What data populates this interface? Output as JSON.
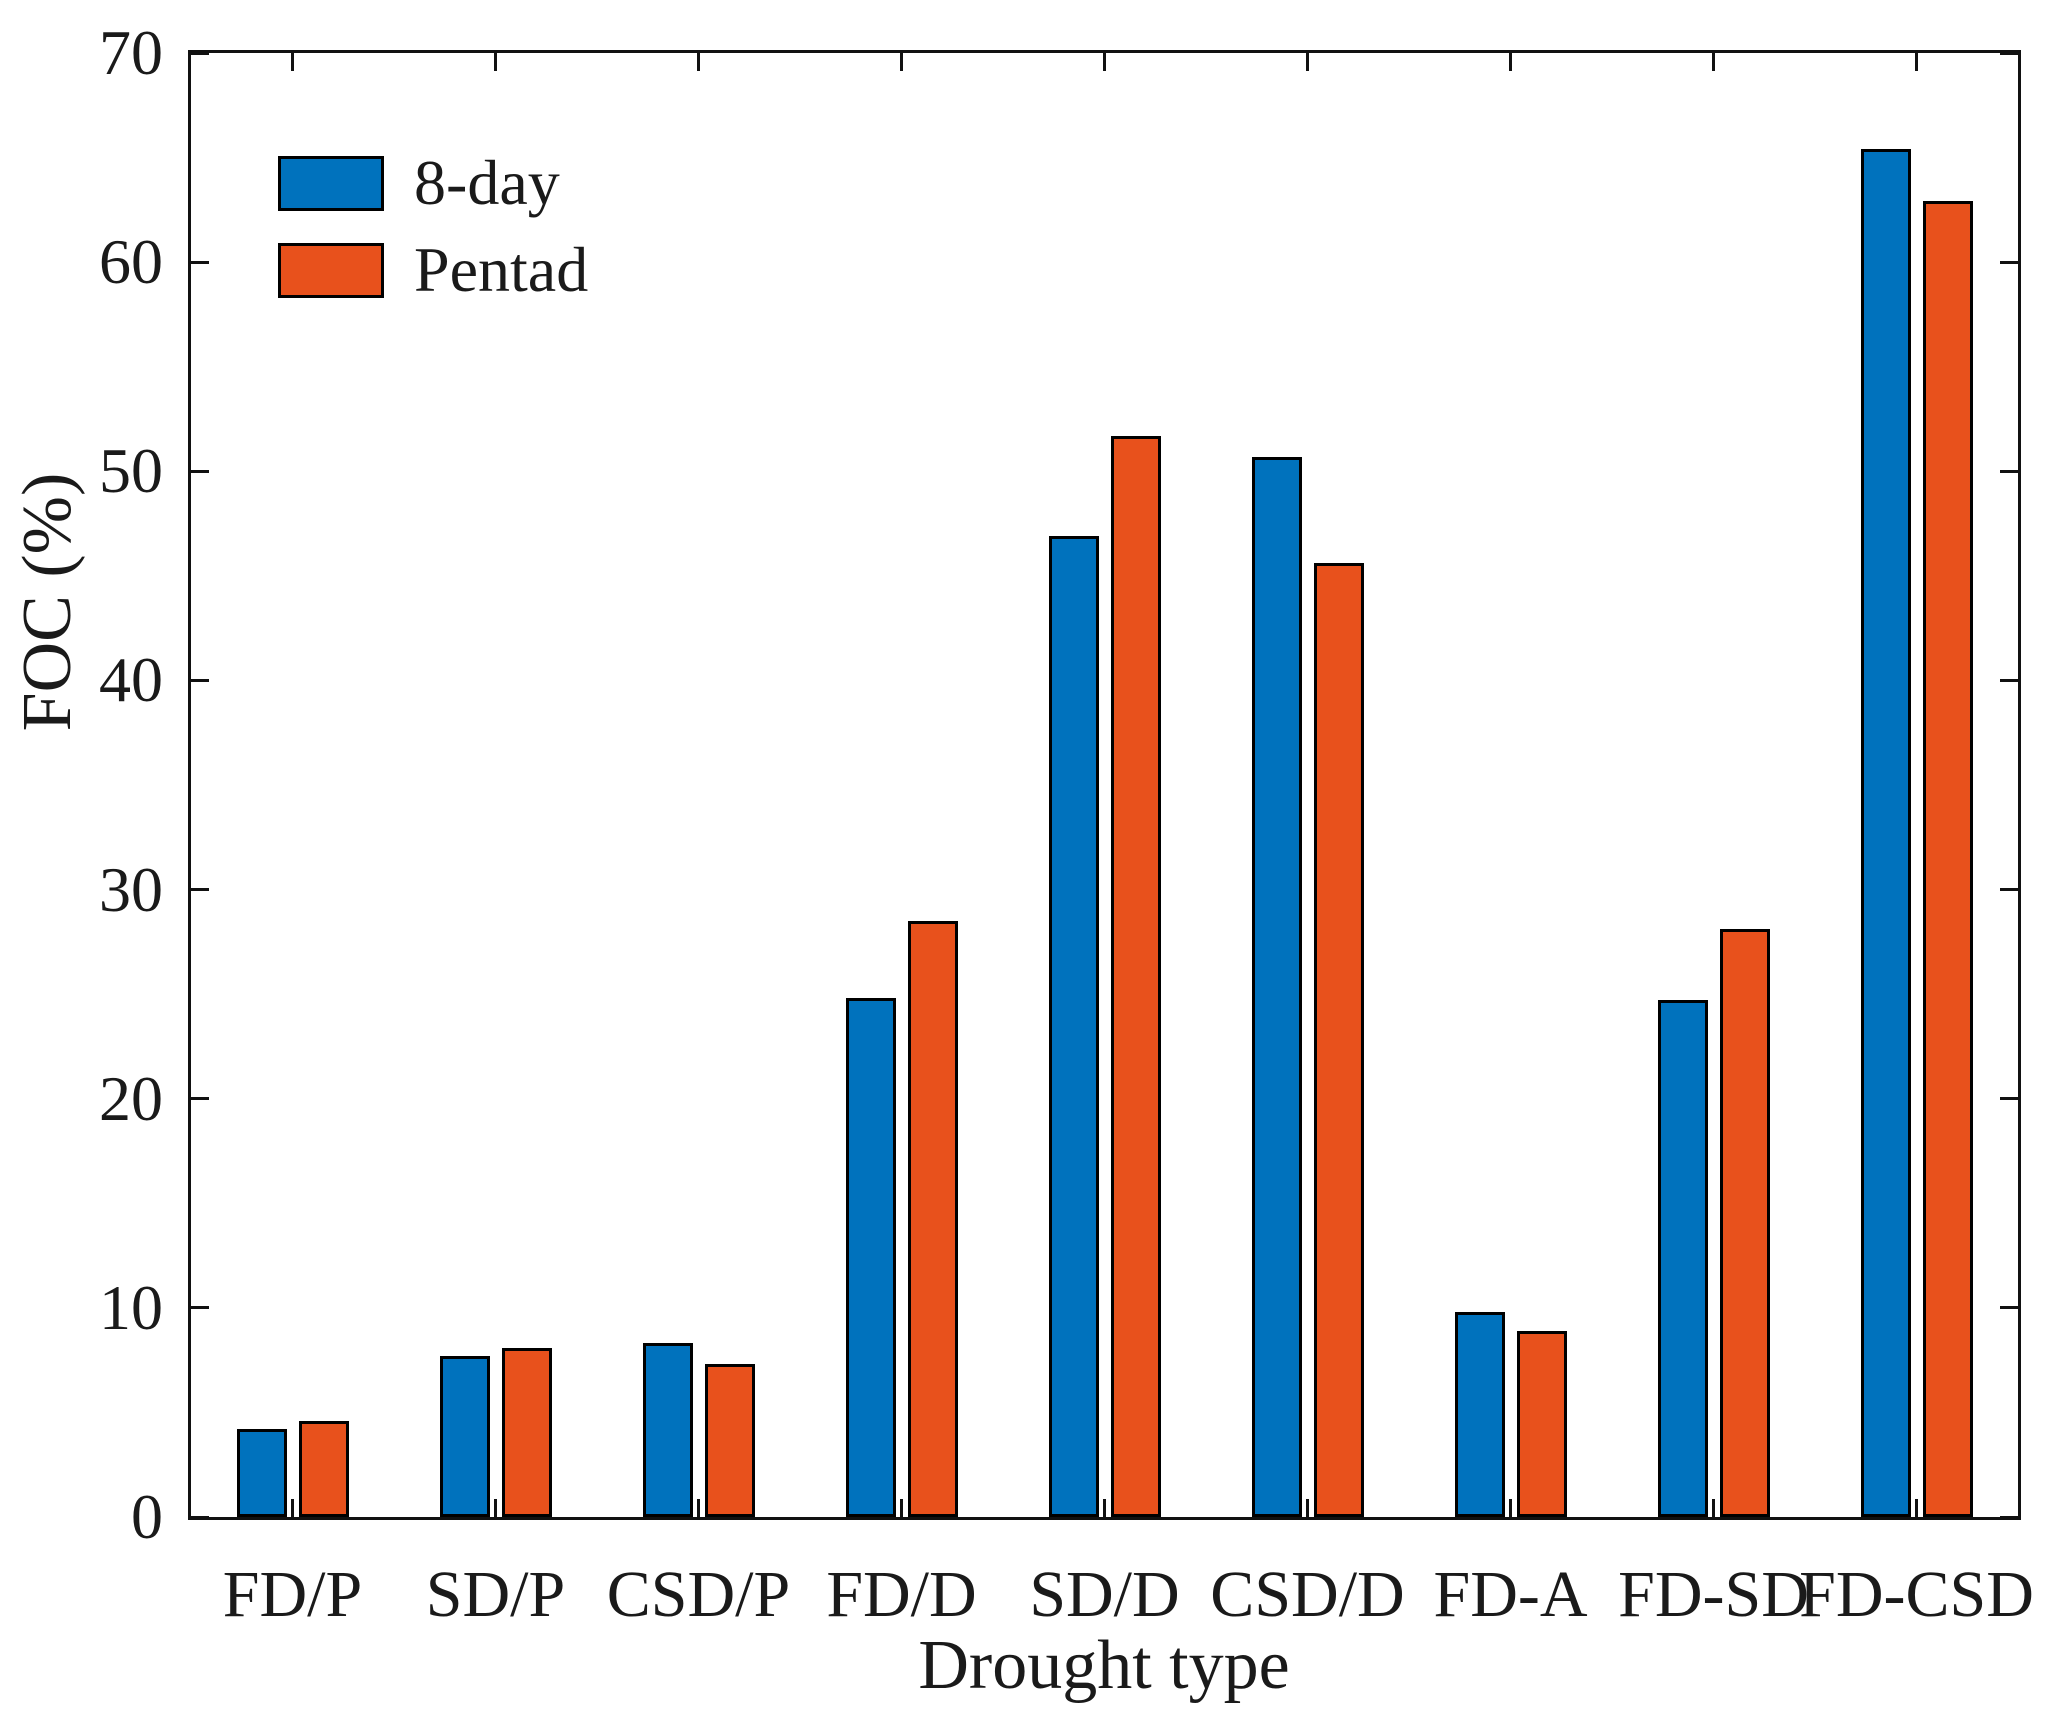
{
  "figure": {
    "background": "#ffffff"
  },
  "chart_data": {
    "type": "bar",
    "title": "",
    "xlabel": "Drought type",
    "ylabel": "FOC (%)",
    "categories": [
      "FD/P",
      "SD/P",
      "CSD/P",
      "FD/D",
      "SD/D",
      "CSD/D",
      "FD-A",
      "FD-SD",
      "FD-CSD"
    ],
    "series": [
      {
        "name": "8-day",
        "color": "#0072BD",
        "values": [
          4.2,
          7.7,
          8.3,
          24.8,
          46.9,
          50.7,
          9.8,
          24.7,
          65.4
        ]
      },
      {
        "name": "Pentad",
        "color": "#E8511C",
        "values": [
          4.6,
          8.1,
          7.3,
          28.5,
          51.7,
          45.6,
          8.9,
          28.1,
          62.9
        ]
      }
    ],
    "ylim": [
      0,
      70
    ],
    "yticks": [
      0,
      10,
      20,
      30,
      40,
      50,
      60,
      70
    ],
    "grid": false,
    "legend_position": "top-left",
    "bar_edge_color": "#000000",
    "axis_color": "#111111"
  }
}
